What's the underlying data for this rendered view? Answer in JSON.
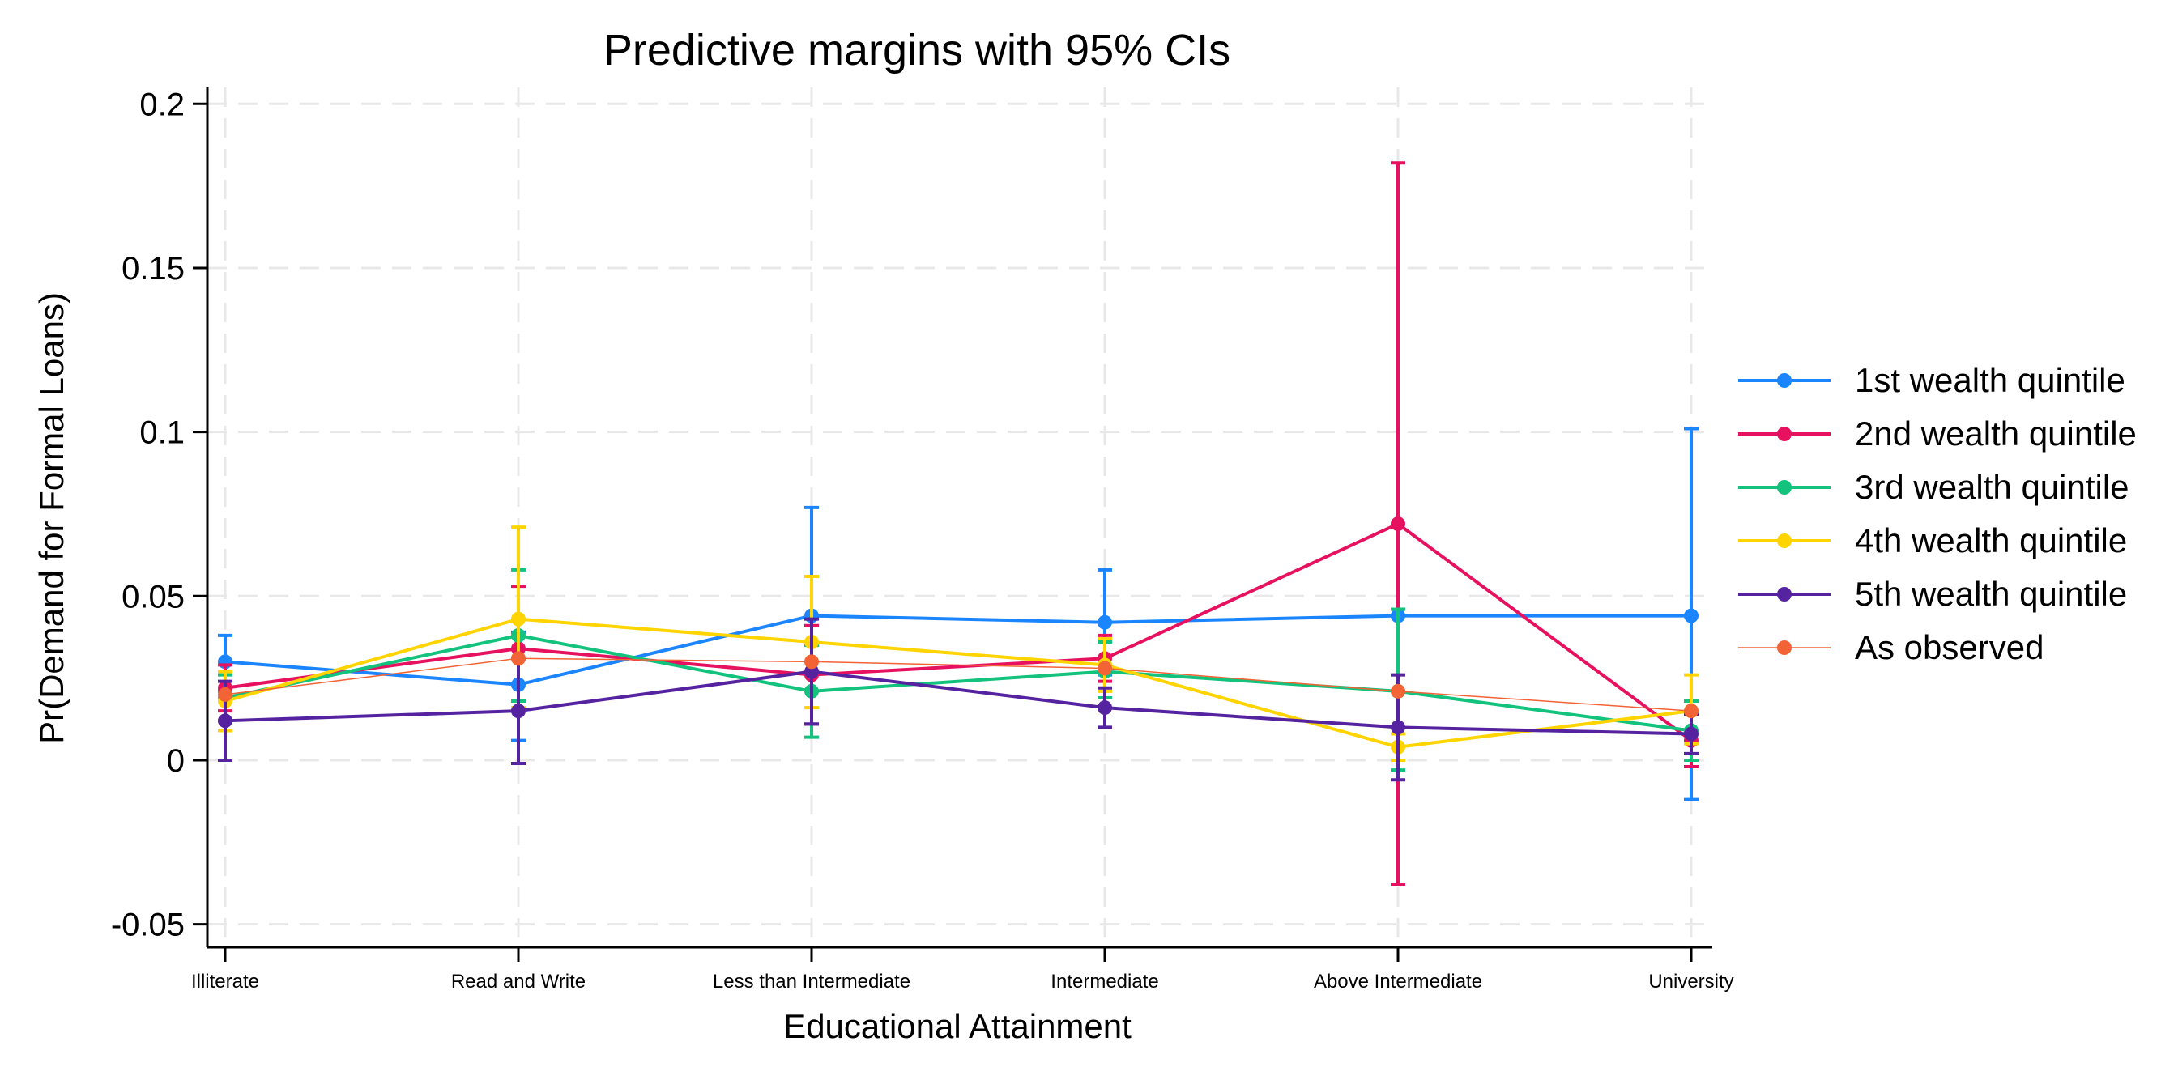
{
  "chart_data": {
    "type": "line",
    "title": "Predictive margins with 95% CIs",
    "xlabel": "Educational Attainment",
    "ylabel": "Pr(Demand for Formal Loans)",
    "categories": [
      "Illiterate",
      "Read and Write",
      "Less than Intermediate",
      "Intermediate",
      "Above Intermediate",
      "University"
    ],
    "yticks": [
      -0.05,
      0,
      0.05,
      0.1,
      0.15,
      0.2
    ],
    "ytick_labels": [
      "-0.05",
      "0",
      "0.05",
      "0.1",
      "0.15",
      "0.2"
    ],
    "ylim": [
      -0.057,
      0.205
    ],
    "grid": true,
    "legend_position": "right",
    "series": [
      {
        "name": "1st wealth quintile",
        "color": "#1a85ff",
        "values": [
          0.03,
          0.023,
          0.044,
          0.042,
          0.044,
          0.044
        ],
        "ci_low": [
          0.021,
          0.006,
          0.011,
          0.026,
          null,
          -0.012
        ],
        "ci_high": [
          0.038,
          0.039,
          0.077,
          0.058,
          null,
          0.101
        ]
      },
      {
        "name": "2nd wealth quintile",
        "color": "#e7125f",
        "values": [
          0.022,
          0.034,
          0.026,
          0.031,
          0.072,
          0.006
        ],
        "ci_low": [
          0.015,
          0.015,
          0.011,
          0.024,
          -0.038,
          -0.002
        ],
        "ci_high": [
          0.029,
          0.053,
          0.041,
          0.038,
          0.182,
          0.014
        ]
      },
      {
        "name": "3rd wealth quintile",
        "color": "#12c27d",
        "values": [
          0.019,
          0.038,
          0.021,
          0.027,
          0.021,
          0.009
        ],
        "ci_low": [
          0.012,
          0.018,
          0.007,
          0.019,
          -0.003,
          0.0
        ],
        "ci_high": [
          0.026,
          0.058,
          0.035,
          0.036,
          0.046,
          0.018
        ]
      },
      {
        "name": "4th wealth quintile",
        "color": "#ffd400",
        "values": [
          0.018,
          0.043,
          0.036,
          0.029,
          0.004,
          0.015
        ],
        "ci_low": [
          0.009,
          0.016,
          0.016,
          0.021,
          0.0,
          0.005
        ],
        "ci_high": [
          0.027,
          0.071,
          0.056,
          0.037,
          0.008,
          0.026
        ]
      },
      {
        "name": "5th wealth quintile",
        "color": "#5522a0",
        "values": [
          0.012,
          0.015,
          0.027,
          0.016,
          0.01,
          0.008
        ],
        "ci_low": [
          0.0,
          -0.001,
          0.011,
          0.01,
          -0.006,
          0.002
        ],
        "ci_high": [
          0.024,
          0.031,
          0.043,
          0.022,
          0.026,
          0.014
        ]
      },
      {
        "name": "As observed",
        "color": "#f26335",
        "thin": true,
        "values": [
          0.02,
          0.031,
          0.03,
          0.028,
          0.021,
          0.015
        ],
        "ci_low": [
          null,
          null,
          null,
          null,
          null,
          null
        ],
        "ci_high": [
          null,
          null,
          null,
          null,
          null,
          null
        ]
      }
    ]
  }
}
